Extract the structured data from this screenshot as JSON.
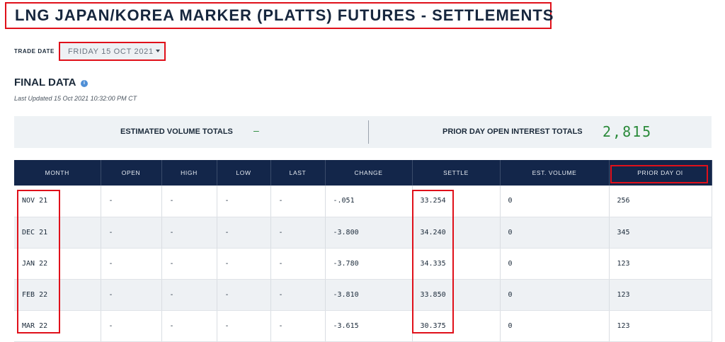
{
  "title": "LNG JAPAN/KOREA MARKER (PLATTS) FUTURES - SETTLEMENTS",
  "trade_date": {
    "label": "TRADE DATE",
    "value": "FRIDAY 15 OCT 2021"
  },
  "final_data": {
    "title": "FINAL DATA",
    "info_icon": "info-icon",
    "last_updated": "Last Updated 15 Oct 2021 10:32:00 PM CT"
  },
  "totals": {
    "estimated_volume_label": "ESTIMATED VOLUME TOTALS",
    "estimated_volume_value": "–",
    "prior_oi_label": "PRIOR DAY OPEN INTEREST TOTALS",
    "prior_oi_value": "2,815"
  },
  "table": {
    "headers": [
      "MONTH",
      "OPEN",
      "HIGH",
      "LOW",
      "LAST",
      "CHANGE",
      "SETTLE",
      "EST. VOLUME",
      "PRIOR DAY OI"
    ],
    "rows": [
      [
        "NOV 21",
        "-",
        "-",
        "-",
        "-",
        "-.051",
        "33.254",
        "0",
        "256"
      ],
      [
        "DEC 21",
        "-",
        "-",
        "-",
        "-",
        "-3.800",
        "34.240",
        "0",
        "345"
      ],
      [
        "JAN 22",
        "-",
        "-",
        "-",
        "-",
        "-3.780",
        "34.335",
        "0",
        "123"
      ],
      [
        "FEB 22",
        "-",
        "-",
        "-",
        "-",
        "-3.810",
        "33.850",
        "0",
        "123"
      ],
      [
        "MAR 22",
        "-",
        "-",
        "-",
        "-",
        "-3.615",
        "30.375",
        "0",
        "123"
      ]
    ]
  },
  "colors": {
    "header_bg": "#13264a",
    "highlight": "#e0101a",
    "positive_value": "#2a8a3a"
  }
}
